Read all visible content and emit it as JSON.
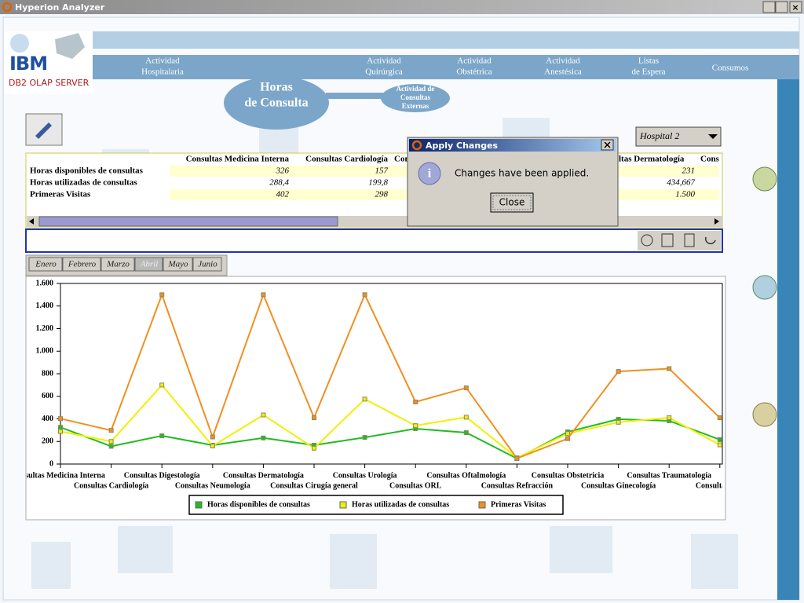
{
  "window": {
    "title": "Hyperion Analyzer"
  },
  "logo": {
    "brand": "IBM",
    "product": "DB2 OLAP SERVER"
  },
  "nav": [
    [
      "Actividad",
      "Hospitalaria"
    ],
    [
      "Actividad",
      "Quirúrgica"
    ],
    [
      "Actividad",
      "Obstétrica"
    ],
    [
      "Actividad",
      "Anestésica"
    ],
    [
      "Listas",
      "de Espera"
    ],
    [
      "Consumos"
    ]
  ],
  "section": {
    "title": [
      "Horas",
      "de Consulta"
    ],
    "sub": [
      "Actividad de",
      "Consultas",
      "Externas"
    ]
  },
  "selector": {
    "value": "Hospital 2"
  },
  "table": {
    "columns": [
      "Consultas Medicina Interna",
      "Consultas Cardiología",
      "Con",
      "ltas Dermatología",
      "Cons"
    ],
    "rows": [
      {
        "label": "Horas disponibles de consultas",
        "values": [
          "326",
          "157",
          "231"
        ]
      },
      {
        "label": "Horas utilizadas de consultas",
        "values": [
          "288,4",
          "199,8",
          "434,667"
        ]
      },
      {
        "label": "Primeras Visitas",
        "values": [
          "402",
          "298",
          "1.500"
        ]
      }
    ]
  },
  "dialog": {
    "title": "Apply Changes",
    "message": "Changes have been applied.",
    "button": "Close"
  },
  "tabs": {
    "items": [
      "Enero",
      "Febrero",
      "Marzo",
      "Abril",
      "Mayo",
      "Junio"
    ],
    "selected": "Abril"
  },
  "chart_data": {
    "type": "line",
    "categories": [
      "sultas Medicina Interna",
      "Consultas Cardiología",
      "Consultas Digestología",
      "Consultas Neumología",
      "Consultas Dermatología",
      "Consultas Cirugía general",
      "Consultas Urología",
      "Consultas ORL",
      "Consultas Oftalmología",
      "Consultas Refracción",
      "Consultas Obstetricia",
      "Consultas Ginecología",
      "Consultas Traumatología",
      "Consultas Reh"
    ],
    "series": [
      {
        "name": "Horas disponibles de consultas",
        "color": "#22bb22",
        "values": [
          326,
          157,
          250,
          167,
          231,
          167,
          236,
          313,
          278,
          49,
          285,
          397,
          383,
          216
        ]
      },
      {
        "name": "Horas utilizadas de consultas",
        "color": "#f0f000",
        "values": [
          288.4,
          199.8,
          700,
          160,
          434.667,
          140,
          575,
          340,
          415,
          55,
          270,
          370,
          410,
          170
        ]
      },
      {
        "name": "Primeras Visitas",
        "color": "#f09020",
        "values": [
          402,
          298,
          1500,
          240,
          1500,
          410,
          1500,
          550,
          675,
          50,
          225,
          820,
          845,
          410
        ]
      }
    ],
    "ylim": [
      0,
      1600
    ],
    "yticks": [
      0,
      200,
      400,
      600,
      800,
      {
        "value": 1000,
        "label": "1.000"
      },
      {
        "value": 1200,
        "label": "1.200"
      },
      {
        "value": 1400,
        "label": "1.400"
      },
      {
        "value": 1600,
        "label": "1.600"
      }
    ],
    "legend": "bottom",
    "grid": false
  }
}
